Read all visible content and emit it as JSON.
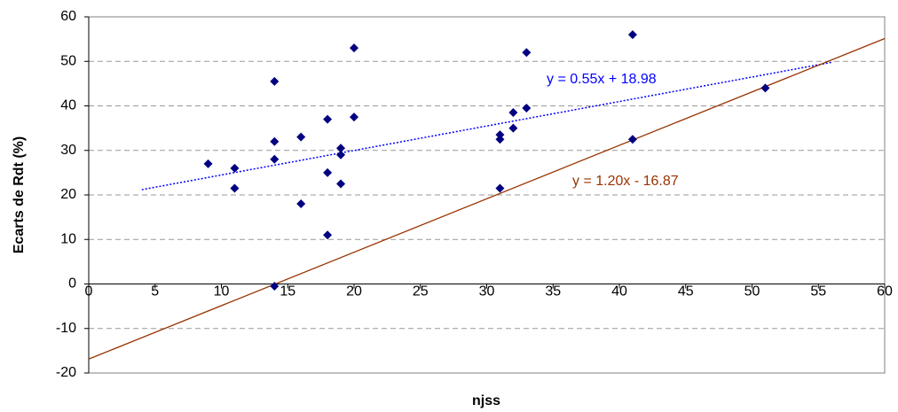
{
  "chart_data": {
    "type": "scatter",
    "x_label": "njss",
    "y_label": "Ecarts de Rdt (%)",
    "x": [
      9,
      11,
      11,
      14,
      14,
      14,
      14,
      16,
      16,
      18,
      18,
      18,
      19,
      19,
      19,
      20,
      20,
      31,
      31,
      31,
      32,
      32,
      33,
      33,
      41,
      41,
      51
    ],
    "values": [
      27,
      26,
      21.5,
      45.5,
      32,
      28,
      -0.5,
      33,
      18,
      37,
      25,
      11,
      30.5,
      29,
      22.5,
      53,
      37.5,
      33.5,
      32.5,
      21.5,
      38.5,
      35,
      52,
      39.5,
      56,
      32.5,
      44
    ],
    "color": "#000080",
    "trendlines": [
      {
        "label": "y = 0.55x + 18.98",
        "color": "#0000ff",
        "dashed": true,
        "x": [
          4,
          56
        ],
        "values": [
          21.18,
          49.78
        ]
      },
      {
        "label": "y = 1.20x - 16.87",
        "color": "#993300",
        "dashed": false,
        "x": [
          0,
          60
        ],
        "values": [
          -16.87,
          55.13
        ]
      }
    ],
    "xlim": [
      0,
      60
    ],
    "xticks": [
      0,
      5,
      10,
      15,
      20,
      25,
      30,
      35,
      40,
      45,
      50,
      55,
      60
    ],
    "ylim": [
      -20,
      60
    ],
    "yticks": [
      -20,
      -10,
      0,
      10,
      20,
      30,
      40,
      50,
      60
    ],
    "grid": true
  }
}
